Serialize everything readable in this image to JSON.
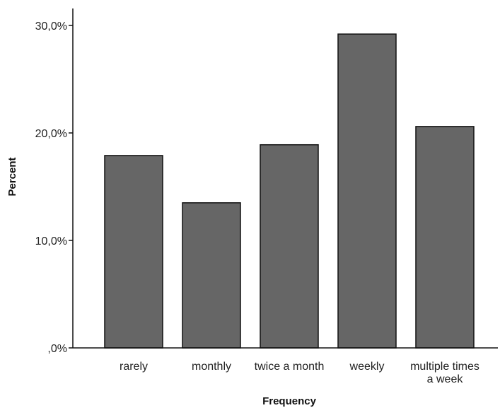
{
  "chart_data": {
    "type": "bar",
    "categories": [
      "rarely",
      "monthly",
      "twice a month",
      "weekly",
      "multiple times a week"
    ],
    "category_label_lines": [
      [
        "rarely"
      ],
      [
        "monthly"
      ],
      [
        "twice a month"
      ],
      [
        "weekly"
      ],
      [
        "multiple times",
        "a week"
      ]
    ],
    "values": [
      17.9,
      13.5,
      18.9,
      29.2,
      20.6
    ],
    "value_unit": "percent",
    "xlabel": "Frequency",
    "ylabel": "Percent",
    "ylim": [
      0,
      30.5
    ],
    "yticks": [
      0,
      10,
      20,
      30
    ],
    "ytick_labels": [
      ",0%",
      "10,0%",
      "20,0%",
      "30,0%"
    ],
    "grid": false,
    "legend": "none",
    "bar_color": "#666666",
    "edge_color": "#111111"
  }
}
